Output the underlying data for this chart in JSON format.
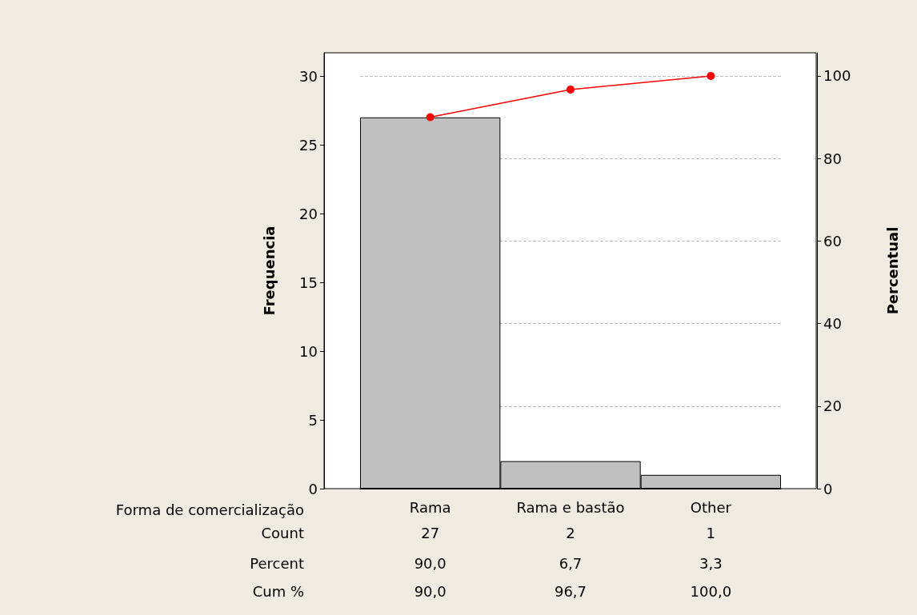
{
  "chart_data": {
    "type": "bar",
    "categories": [
      "Rama",
      "Rama e bastão",
      "Other"
    ],
    "xlabel": "Forma de comercialização",
    "ylabel": "Frequencia",
    "y2label": "Percentual",
    "ylim": [
      0,
      31.7
    ],
    "yticks": [
      0,
      5,
      10,
      15,
      20,
      25,
      30
    ],
    "y2lim": [
      0,
      105.6
    ],
    "y2ticks": [
      0,
      20,
      40,
      60,
      80,
      100
    ],
    "grid": "y2",
    "marker": "circle",
    "series": [
      {
        "color": "#c0c0c0",
        "values": [
          27,
          2,
          1
        ],
        "value_labels": [
          "27",
          "2",
          "1"
        ]
      },
      {
        "type": "line",
        "axis": "y2",
        "color": "#ff0000",
        "values": [
          90,
          96.7,
          100
        ],
        "value_labels": [
          "90,0",
          "96,7",
          "100,0"
        ]
      }
    ],
    "annotations": [
      "Count",
      "Percent",
      "Cum %",
      "90,0",
      "6,7",
      "3,3"
    ]
  }
}
